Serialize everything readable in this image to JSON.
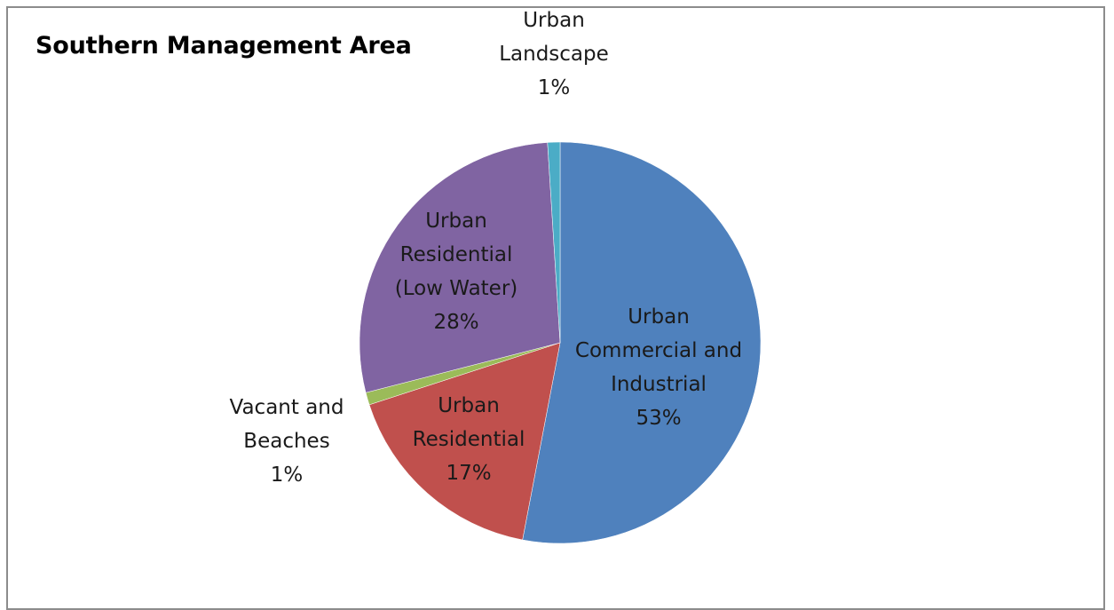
{
  "chart_data": {
    "type": "pie",
    "title": "Southern Management Area",
    "slices": [
      {
        "name": "Urban Commercial and Industrial",
        "value": 53,
        "label_lines": [
          "Urban",
          "Commercial and",
          "Industrial",
          "53%"
        ],
        "color": "#4f81bd"
      },
      {
        "name": "Urban Residential",
        "value": 17,
        "label_lines": [
          "Urban",
          "Residential",
          "17%"
        ],
        "color": "#c0504d"
      },
      {
        "name": "Vacant and Beaches",
        "value": 1,
        "label_lines": [
          "Vacant and",
          "Beaches",
          "1%"
        ],
        "color": "#9bbb59"
      },
      {
        "name": "Urban Residential (Low Water)",
        "value": 28,
        "label_lines": [
          "Urban",
          "Residential",
          "(Low Water)",
          "28%"
        ],
        "color": "#8064a2"
      },
      {
        "name": "Urban Landscape",
        "value": 1,
        "label_lines": [
          "Urban",
          "Landscape",
          "1%"
        ],
        "color": "#4bacc6"
      }
    ]
  }
}
